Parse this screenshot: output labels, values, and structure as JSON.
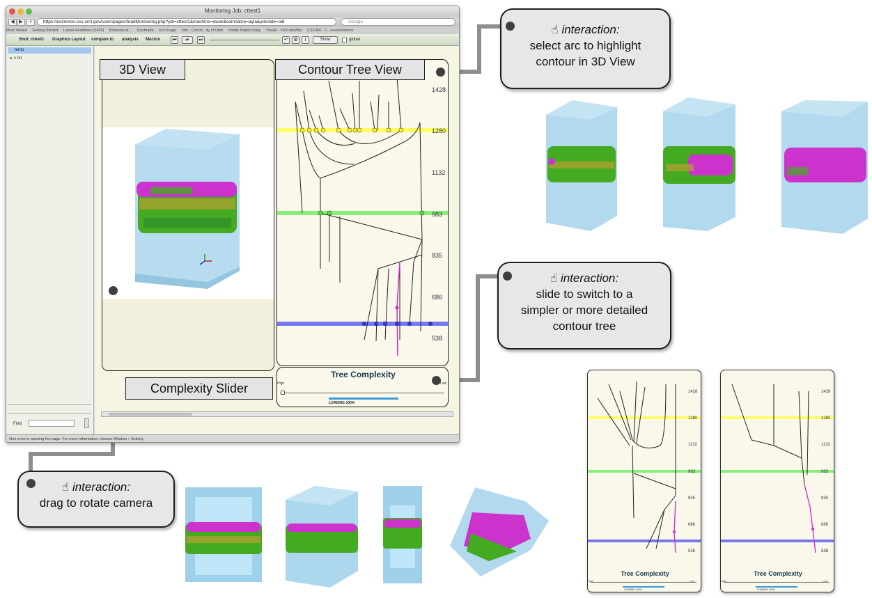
{
  "browser": {
    "window_title": "Monitoring Job: cttest1",
    "url": "https://esimmon.ccs.ornl.gov/userspages/bradMonitoring.php?job=cttest1&machine=ewok&coinname=ayla&jobstate=old",
    "search_placeholder": "Google",
    "bookmarks": [
      "Most Visited",
      "Getting Started",
      "Latest Headlines (3425)",
      "Bolsistas.sl...",
      "Doubrada",
      "ecc://cage",
      "Info - Comm...ity of Utah",
      "Kindle Nation Daily",
      "VisuAl - VisTrailsWiki",
      "CS1050 - C...nouncements"
    ],
    "toolbar_items": [
      "Shot: cttest1",
      "Graphics Layout",
      "compare to",
      "analysis",
      "Macros"
    ],
    "show_label": "Show",
    "global_label": "global",
    "status_text": "One error in opening the page. For more information, choose Window > Activity."
  },
  "sidebar": {
    "selected_item": "temp",
    "tree_item": "txt",
    "find_label": "Find:"
  },
  "labels": {
    "view_3d": "3D View",
    "contour_tree_view": "Contour Tree View",
    "complexity_slider": "Complexity Slider"
  },
  "tree_complexity": {
    "title": "Tree Complexity",
    "high": "High",
    "low": "Low",
    "loading": "LOADING 100%",
    "progress": 1.0
  },
  "contour_axis_ticks": [
    "1428",
    "1280",
    "1132",
    "983",
    "835",
    "686",
    "538"
  ],
  "callouts": {
    "arc": {
      "header": "interaction:",
      "lines": [
        "select arc to highlight",
        "contour in 3D View"
      ]
    },
    "slide": {
      "header": "interaction:",
      "lines": [
        "slide to switch to a",
        "simpler or more detailed",
        "contour tree"
      ]
    },
    "drag": {
      "header": "interaction:",
      "lines": [
        "drag to rotate camera"
      ]
    }
  },
  "mini_panels": [
    {
      "title": "Tree Complexity",
      "ticks": [
        "1428",
        "1280",
        "1132",
        "983",
        "835",
        "686",
        "538"
      ],
      "loading": "LOADING 100%"
    },
    {
      "title": "Tree Complexity",
      "ticks": [
        "1428",
        "1280",
        "1132",
        "983",
        "835",
        "686",
        "538"
      ],
      "loading": "LOADING 100%"
    }
  ],
  "colors": {
    "isoline_yellow": "#ffff66",
    "isoline_green": "#88ee77",
    "isoline_blue": "#7777ee",
    "highlight_arc": "#dd22cc",
    "volume_blue": "#9fd0ea",
    "feature_green": "#44aa22",
    "feature_magenta": "#cc33cc",
    "progress_blue": "#3a9ad9"
  }
}
